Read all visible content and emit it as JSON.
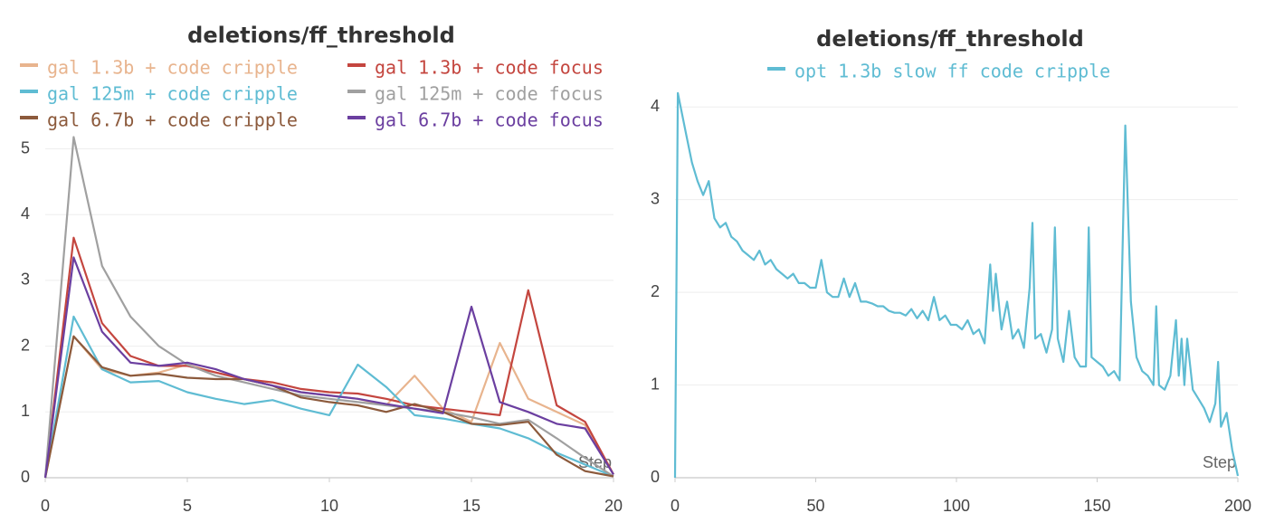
{
  "chart_data": [
    {
      "type": "line",
      "title": "deletions/ff_threshold",
      "x_label": "Step",
      "x": [
        0,
        1,
        2,
        3,
        4,
        5,
        6,
        7,
        8,
        9,
        10,
        11,
        12,
        13,
        14,
        15,
        16,
        17,
        18,
        19,
        20
      ],
      "xlim": [
        0,
        20
      ],
      "xticks": [
        0,
        5,
        10,
        15,
        20
      ],
      "ylim": [
        0,
        5.2
      ],
      "yticks": [
        0,
        1,
        2,
        3,
        4,
        5
      ],
      "grid": true,
      "series": [
        {
          "name": "gal 1.3b + code cripple",
          "color": "#e8b48e",
          "values": [
            0,
            2.15,
            1.65,
            1.55,
            1.6,
            1.72,
            1.6,
            1.5,
            1.4,
            1.3,
            1.25,
            1.2,
            1.1,
            1.55,
            1.05,
            0.85,
            2.05,
            1.2,
            1.0,
            0.8,
            0.05
          ]
        },
        {
          "name": "gal 1.3b + code focus",
          "color": "#c4463f",
          "values": [
            0,
            3.65,
            2.35,
            1.85,
            1.7,
            1.7,
            1.6,
            1.5,
            1.45,
            1.35,
            1.3,
            1.28,
            1.2,
            1.1,
            1.05,
            1.0,
            0.95,
            2.85,
            1.1,
            0.85,
            0.05
          ]
        },
        {
          "name": "gal 125m + code cripple",
          "color": "#5fbcd3",
          "values": [
            0,
            2.45,
            1.65,
            1.45,
            1.47,
            1.3,
            1.2,
            1.12,
            1.18,
            1.05,
            0.95,
            1.72,
            1.38,
            0.95,
            0.9,
            0.82,
            0.75,
            0.6,
            0.38,
            0.2,
            0.02
          ]
        },
        {
          "name": "gal 125m + code focus",
          "color": "#a0a0a0",
          "values": [
            0,
            5.18,
            3.22,
            2.45,
            2.0,
            1.72,
            1.55,
            1.45,
            1.35,
            1.25,
            1.2,
            1.15,
            1.1,
            1.05,
            1.0,
            0.92,
            0.82,
            0.88,
            0.6,
            0.3,
            0.02
          ]
        },
        {
          "name": "gal 6.7b + code cripple",
          "color": "#8c5a3c",
          "values": [
            0,
            2.15,
            1.68,
            1.55,
            1.58,
            1.52,
            1.5,
            1.5,
            1.4,
            1.22,
            1.15,
            1.1,
            1.0,
            1.12,
            1.0,
            0.82,
            0.8,
            0.85,
            0.35,
            0.1,
            0.02
          ]
        },
        {
          "name": "gal 6.7b + code focus",
          "color": "#6b3fa0",
          "values": [
            0,
            3.35,
            2.22,
            1.75,
            1.7,
            1.75,
            1.65,
            1.5,
            1.4,
            1.3,
            1.25,
            1.2,
            1.12,
            1.05,
            0.98,
            2.6,
            1.15,
            1.0,
            0.82,
            0.75,
            0.05
          ]
        }
      ]
    },
    {
      "type": "line",
      "title": "deletions/ff_threshold",
      "x_label": "Step",
      "x": [
        0,
        1,
        2,
        4,
        6,
        8,
        10,
        12,
        14,
        16,
        18,
        20,
        22,
        24,
        26,
        28,
        30,
        32,
        34,
        36,
        38,
        40,
        42,
        44,
        46,
        48,
        50,
        52,
        54,
        56,
        58,
        60,
        62,
        64,
        66,
        68,
        70,
        72,
        74,
        76,
        78,
        80,
        82,
        84,
        86,
        88,
        90,
        92,
        94,
        96,
        98,
        100,
        102,
        104,
        106,
        108,
        110,
        112,
        113,
        114,
        116,
        118,
        120,
        122,
        124,
        126,
        127,
        128,
        130,
        132,
        134,
        135,
        136,
        138,
        140,
        142,
        144,
        146,
        147,
        148,
        150,
        152,
        154,
        156,
        158,
        160,
        162,
        164,
        166,
        168,
        170,
        171,
        172,
        174,
        176,
        178,
        179,
        180,
        181,
        182,
        184,
        186,
        188,
        190,
        192,
        193,
        194,
        196,
        197,
        198,
        200
      ],
      "xlim": [
        0,
        200
      ],
      "xticks": [
        0,
        50,
        100,
        150,
        200
      ],
      "ylim": [
        0,
        4.1
      ],
      "yticks": [
        0,
        1,
        2,
        3,
        4
      ],
      "grid": true,
      "series": [
        {
          "name": "opt 1.3b slow ff code cripple",
          "color": "#5fbcd3",
          "values": [
            0,
            4.15,
            4.0,
            3.7,
            3.4,
            3.2,
            3.05,
            3.2,
            2.8,
            2.7,
            2.75,
            2.6,
            2.55,
            2.45,
            2.4,
            2.35,
            2.45,
            2.3,
            2.35,
            2.25,
            2.2,
            2.15,
            2.2,
            2.1,
            2.1,
            2.05,
            2.05,
            2.35,
            2.0,
            1.95,
            1.95,
            2.15,
            1.95,
            2.1,
            1.9,
            1.9,
            1.88,
            1.85,
            1.85,
            1.8,
            1.78,
            1.78,
            1.75,
            1.82,
            1.72,
            1.8,
            1.7,
            1.95,
            1.7,
            1.75,
            1.65,
            1.65,
            1.6,
            1.7,
            1.55,
            1.6,
            1.45,
            2.3,
            1.8,
            2.2,
            1.6,
            1.9,
            1.5,
            1.6,
            1.4,
            2.05,
            2.75,
            1.5,
            1.55,
            1.35,
            1.6,
            2.7,
            1.5,
            1.25,
            1.8,
            1.3,
            1.2,
            1.2,
            2.7,
            1.3,
            1.25,
            1.2,
            1.1,
            1.15,
            1.05,
            3.8,
            1.9,
            1.3,
            1.15,
            1.1,
            1.0,
            1.85,
            1.0,
            0.95,
            1.1,
            1.7,
            1.1,
            1.5,
            1.0,
            1.5,
            0.95,
            0.85,
            0.75,
            0.6,
            0.8,
            1.25,
            0.55,
            0.7,
            0.5,
            0.3,
            0.02
          ]
        }
      ]
    }
  ]
}
